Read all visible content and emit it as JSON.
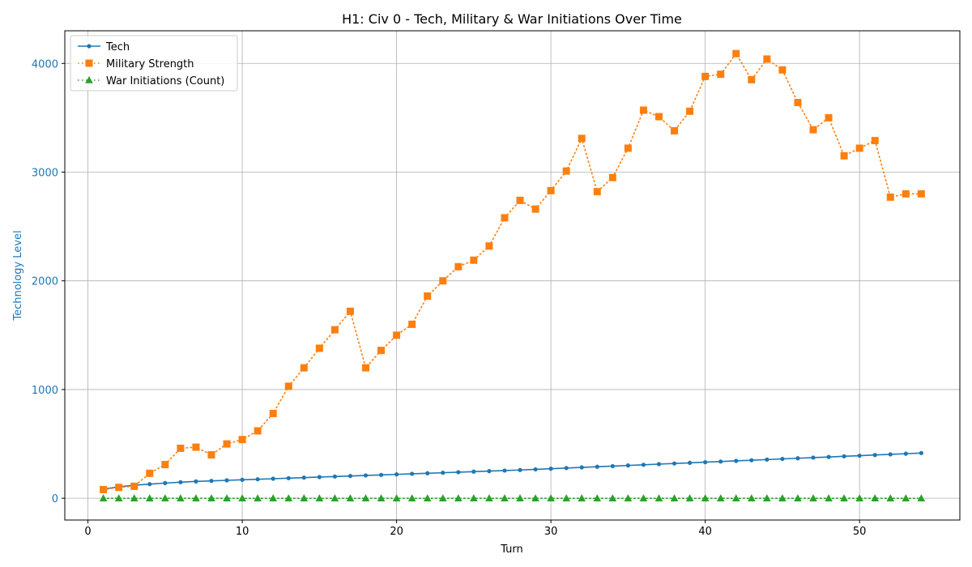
{
  "chart_data": {
    "type": "line",
    "title": "H1: Civ 0 - Tech, Military & War Initiations Over Time",
    "xlabel": "Turn",
    "ylabel": "Technology Level",
    "xlim": [
      -1.5,
      56.5
    ],
    "ylim": [
      -200,
      4300
    ],
    "xticks": [
      0,
      10,
      20,
      30,
      40,
      50
    ],
    "yticks": [
      0,
      1000,
      2000,
      3000,
      4000
    ],
    "grid": true,
    "legend_position": "top-left",
    "x": [
      1,
      2,
      3,
      4,
      5,
      6,
      7,
      8,
      9,
      10,
      11,
      12,
      13,
      14,
      15,
      16,
      17,
      18,
      19,
      20,
      21,
      22,
      23,
      24,
      25,
      26,
      27,
      28,
      29,
      30,
      31,
      32,
      33,
      34,
      35,
      36,
      37,
      38,
      39,
      40,
      41,
      42,
      43,
      44,
      45,
      46,
      47,
      48,
      49,
      50,
      51,
      52,
      53,
      54
    ],
    "series": [
      {
        "name": "Tech",
        "color": "#1f77b4",
        "style": "solid",
        "marker": "circle",
        "values": [
          85,
          105,
          120,
          130,
          140,
          148,
          155,
          160,
          165,
          170,
          175,
          180,
          185,
          190,
          195,
          200,
          205,
          210,
          215,
          220,
          225,
          230,
          235,
          240,
          245,
          250,
          255,
          260,
          266,
          272,
          278,
          284,
          290,
          296,
          302,
          308,
          314,
          320,
          326,
          332,
          338,
          344,
          350,
          356,
          362,
          368,
          374,
          380,
          386,
          392,
          398,
          404,
          410,
          416
        ]
      },
      {
        "name": "Military Strength",
        "color": "#ff7f0e",
        "style": "dotted",
        "marker": "square",
        "values": [
          80,
          100,
          110,
          230,
          310,
          460,
          470,
          400,
          500,
          540,
          620,
          780,
          1030,
          1200,
          1380,
          1550,
          1720,
          1200,
          1360,
          1500,
          1600,
          1860,
          2000,
          2130,
          2190,
          2320,
          2580,
          2740,
          2660,
          2830,
          3010,
          3310,
          2820,
          2950,
          3220,
          3570,
          3510,
          3380,
          3560,
          3880,
          3900,
          4090,
          3850,
          4040,
          3940,
          3640,
          3390,
          3500,
          3150,
          3220,
          3290,
          2770,
          2800,
          2800
        ]
      },
      {
        "name": "War Initiations (Count)",
        "color": "#2ca02c",
        "style": "dotted",
        "marker": "triangle",
        "values": [
          0,
          0,
          0,
          0,
          0,
          0,
          0,
          0,
          0,
          0,
          0,
          0,
          0,
          0,
          0,
          0,
          0,
          0,
          0,
          0,
          0,
          0,
          0,
          0,
          0,
          0,
          0,
          0,
          0,
          0,
          0,
          0,
          0,
          0,
          0,
          0,
          0,
          0,
          0,
          0,
          0,
          0,
          0,
          0,
          0,
          0,
          0,
          0,
          0,
          0,
          0,
          0,
          0,
          0
        ]
      }
    ]
  }
}
